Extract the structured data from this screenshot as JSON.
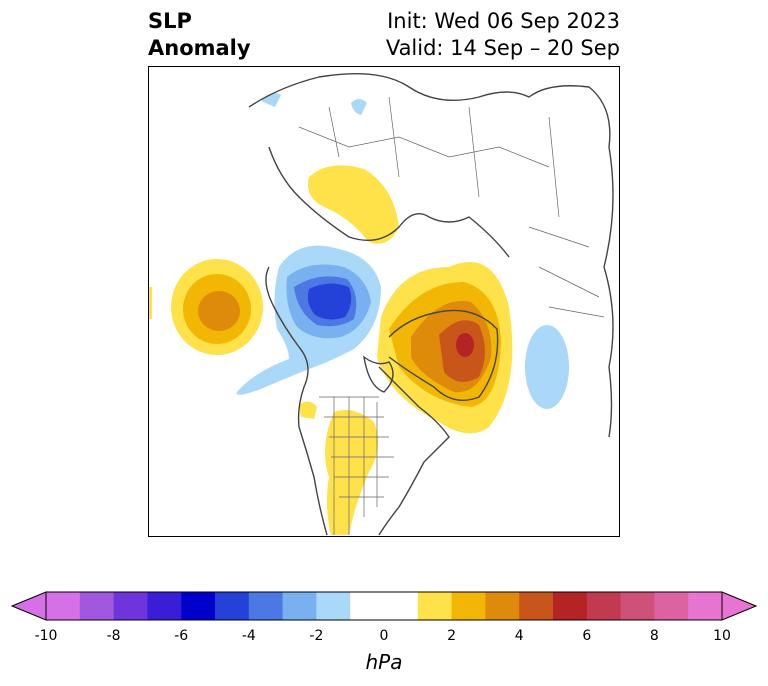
{
  "title": {
    "left_line1": "SLP",
    "left_line2": "Anomaly",
    "right_line1": "Init: Wed 06 Sep 2023",
    "right_line2": "Valid: 14 Sep – 20 Sep"
  },
  "colorbar": {
    "unit": "hPa",
    "ticks": [
      "-10",
      "-8",
      "-6",
      "-4",
      "-2",
      "0",
      "2",
      "4",
      "6",
      "8",
      "10"
    ],
    "colors": [
      "#d670e6",
      "#a257e0",
      "#6f35dc",
      "#3a1ed6",
      "#0000cc",
      "#2542d8",
      "#4c78e4",
      "#79b0f0",
      "#aad8f8",
      "#ffffff",
      "#ffffff",
      "#ffe14a",
      "#f2b705",
      "#de8b0c",
      "#c8561a",
      "#b42424",
      "#c23a4f",
      "#cf5078",
      "#dd62a2",
      "#e874d2"
    ]
  },
  "map": {
    "projection": "north-polar-stereographic",
    "features": [
      "coastlines",
      "country-borders",
      "us-state-borders"
    ]
  }
}
